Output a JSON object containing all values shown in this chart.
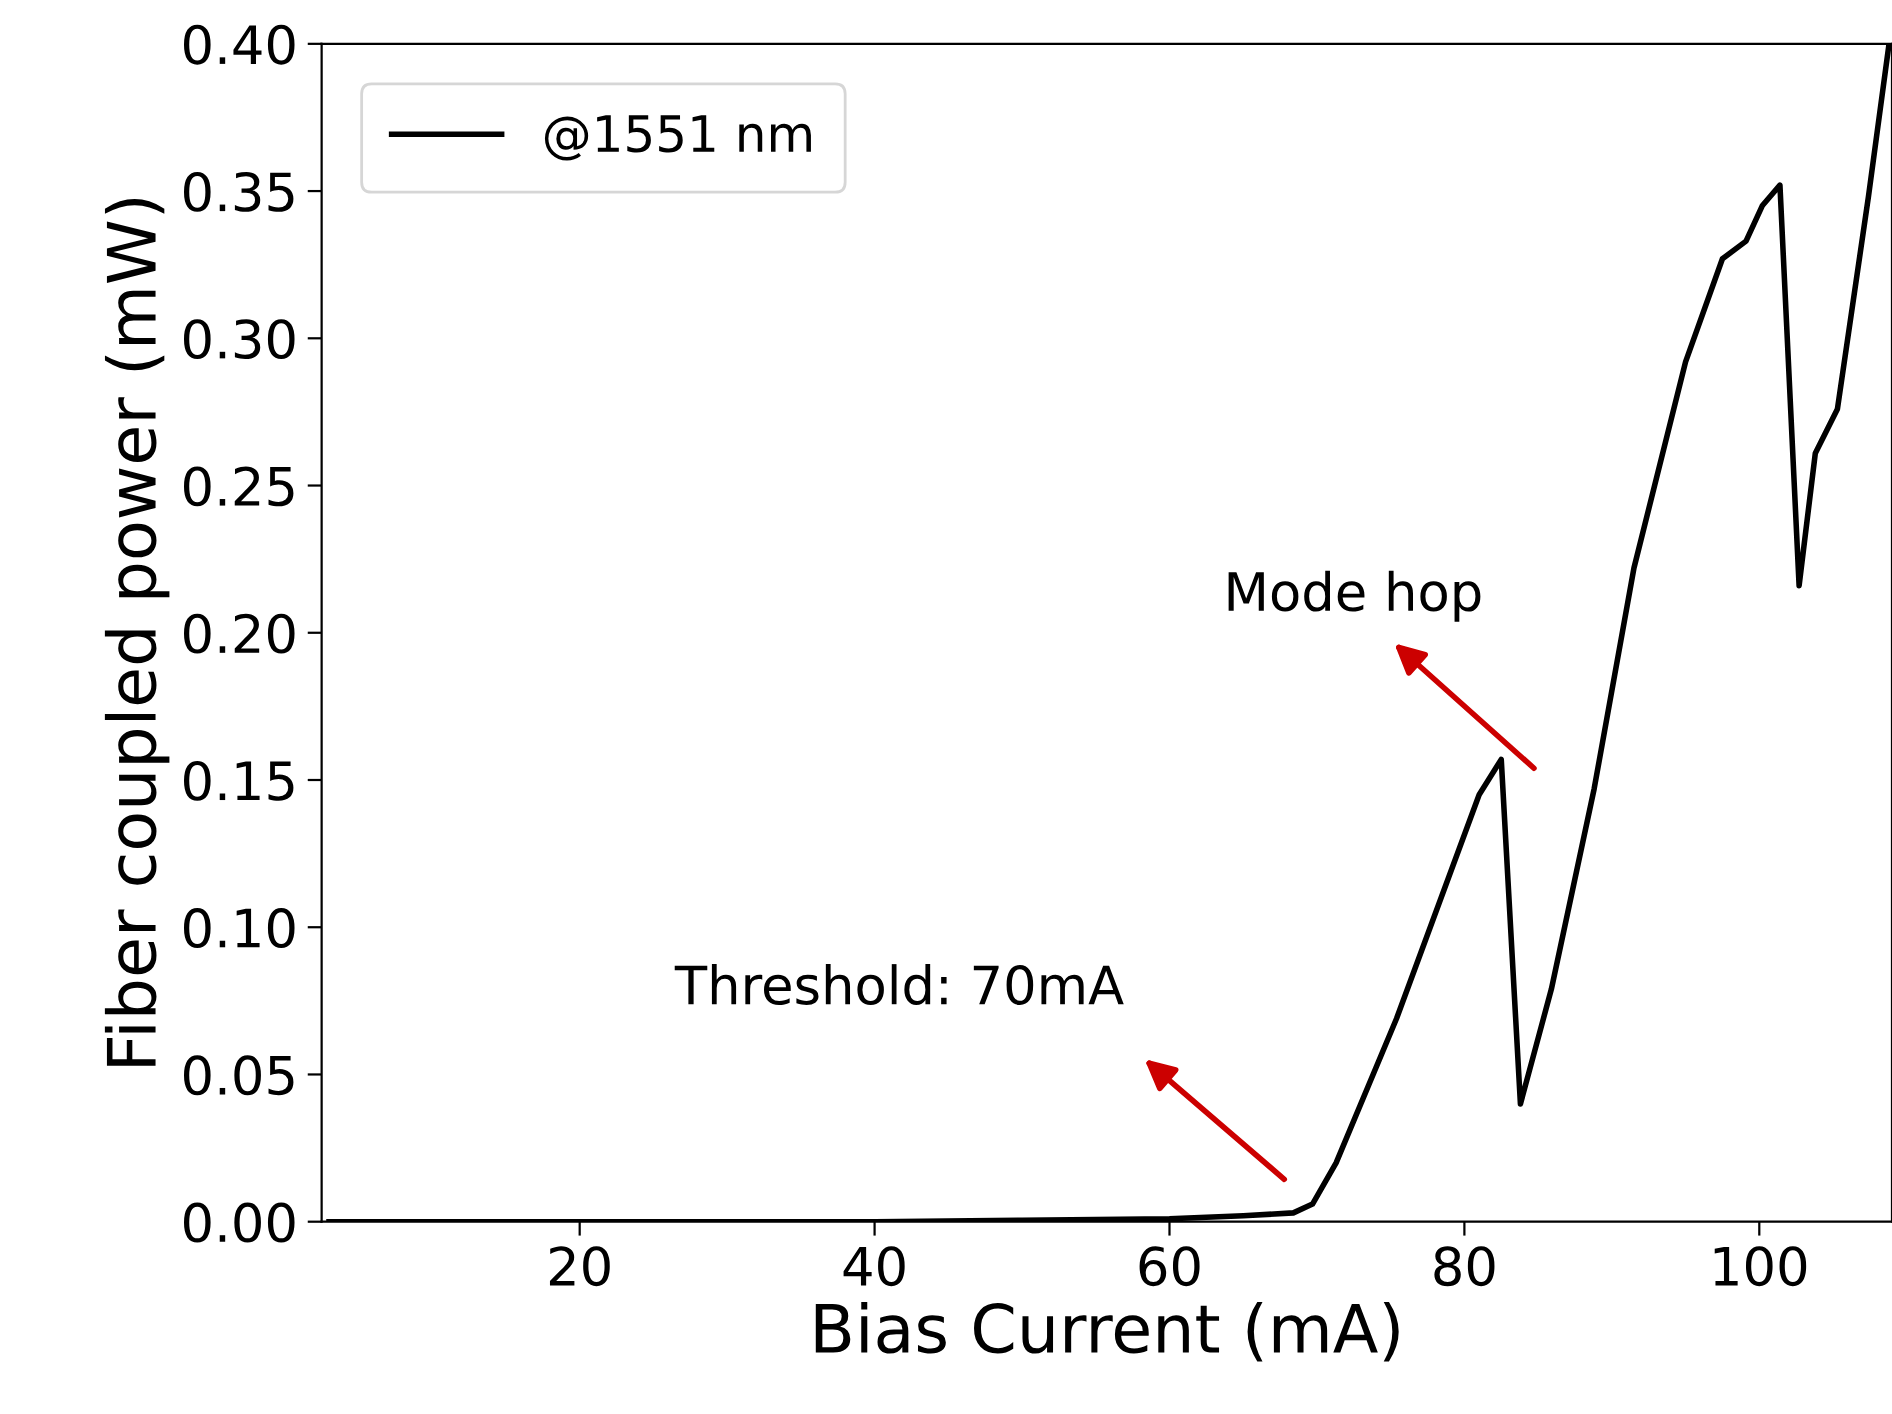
{
  "chart_data": {
    "type": "line",
    "xlabel": "Bias Current (mA)",
    "ylabel": "Fiber coupled power (mW)",
    "series": [
      {
        "name": "@1551 nm",
        "color": "#000000",
        "x": [
          3,
          40,
          50,
          60,
          65,
          68.4,
          69.7,
          71.3,
          75.4,
          81.0,
          82.5,
          83.8,
          85.9,
          88.8,
          91.5,
          95.0,
          97.5,
          99.1,
          100.2,
          101.4,
          102.7,
          103.8,
          105.3,
          107.4,
          108.8
        ],
        "values": [
          0,
          0,
          0.0005,
          0.001,
          0.002,
          0.003,
          0.006,
          0.02,
          0.069,
          0.145,
          0.157,
          0.04,
          0.079,
          0.147,
          0.222,
          0.292,
          0.327,
          0.333,
          0.345,
          0.352,
          0.216,
          0.261,
          0.276,
          0.348,
          0.4
        ]
      }
    ],
    "xlim": [
      2.5,
      109
    ],
    "xticks": [
      20,
      40,
      60,
      80,
      100
    ],
    "ylim": [
      0,
      0.4
    ],
    "yticks": [
      {
        "value": 0,
        "label": "0.00"
      },
      {
        "value": 0.05,
        "label": "0.05"
      },
      {
        "value": 0.1,
        "label": "0.10"
      },
      {
        "value": 0.15,
        "label": "0.15"
      },
      {
        "value": 0.2,
        "label": "0.20"
      },
      {
        "value": 0.25,
        "label": "0.25"
      },
      {
        "value": 0.3,
        "label": "0.30"
      },
      {
        "value": 0.35,
        "label": "0.35"
      },
      {
        "value": 0.4,
        "label": "0.40"
      }
    ],
    "annotations": [
      "Threshold: 70mA",
      "Mode hop"
    ],
    "grid": false,
    "legend": "top left",
    "line_style": "solid",
    "marker": "none"
  }
}
